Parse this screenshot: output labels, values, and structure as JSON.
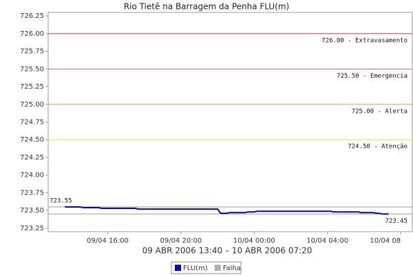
{
  "chart_data": {
    "type": "line",
    "title": "Rio Tietê na Barragem da Penha FLU(m)",
    "subtitle": "09 ABR 2006 13:40 – 10 ABR 2006 07:20",
    "x": [
      "2006-04-09T13:40",
      "2006-04-09T14:30",
      "2006-04-09T14:40",
      "2006-04-09T15:30",
      "2006-04-09T15:40",
      "2006-04-09T17:30",
      "2006-04-09T17:40",
      "2006-04-09T22:00",
      "2006-04-09T22:10",
      "2006-04-09T22:30",
      "2006-04-09T22:40",
      "2006-04-09T23:30",
      "2006-04-09T23:40",
      "2006-04-10T00:00",
      "2006-04-10T00:10",
      "2006-04-10T04:10",
      "2006-04-10T04:20",
      "2006-04-10T05:40",
      "2006-04-10T05:50",
      "2006-04-10T06:30",
      "2006-04-10T06:40",
      "2006-04-10T06:50",
      "2006-04-10T07:00",
      "2006-04-10T07:20"
    ],
    "series": [
      {
        "name": "FLU(m)",
        "color": "#0000cc",
        "values": [
          723.55,
          723.55,
          723.54,
          723.54,
          723.53,
          723.53,
          723.52,
          723.52,
          723.46,
          723.46,
          723.47,
          723.47,
          723.48,
          723.48,
          723.49,
          723.49,
          723.48,
          723.48,
          723.47,
          723.47,
          723.46,
          723.46,
          723.45,
          723.45
        ]
      },
      {
        "name": "Falha",
        "color": "#b0b0b0",
        "values": [
          null,
          null,
          null,
          null,
          null,
          null,
          null,
          null,
          null,
          null,
          null,
          null,
          null,
          null,
          null,
          null,
          null,
          null,
          null,
          null,
          null,
          null,
          null,
          null
        ]
      }
    ],
    "reference_lines": [
      {
        "value": 726.0,
        "label": "726.00 - Extravasamento",
        "color": "#cc3333"
      },
      {
        "value": 725.5,
        "label": "725.50 - Emergencia",
        "color": "#cc55cc"
      },
      {
        "value": 725.0,
        "label": "725.00 - Alerta",
        "color": "#ee9933"
      },
      {
        "value": 724.5,
        "label": "724.50 - Atenção",
        "color": "#eedd22"
      }
    ],
    "extremes": [
      {
        "value": 723.55,
        "label": "723.55",
        "side": "left"
      },
      {
        "value": 723.45,
        "label": "723.45",
        "side": "right"
      }
    ],
    "extreme_color": "#999999",
    "xlim": [
      "2006-04-09T12:45",
      "2006-04-10T08:38"
    ],
    "xticks": [
      {
        "value": "2006-04-09T16:00",
        "label": "09/04 16:00"
      },
      {
        "value": "2006-04-09T20:00",
        "label": "09/04 20:00"
      },
      {
        "value": "2006-04-10T00:00",
        "label": "10/04 00:00"
      },
      {
        "value": "2006-04-10T04:00",
        "label": "10/04 04:00"
      },
      {
        "value": "2006-04-10T08:00",
        "label": "10/04 08"
      }
    ],
    "ylim": [
      723.2,
      726.3
    ],
    "yticks": [
      {
        "value": 723.25,
        "label": "723.25"
      },
      {
        "value": 723.5,
        "label": "723.50"
      },
      {
        "value": 723.75,
        "label": "723.75"
      },
      {
        "value": 724.0,
        "label": "724.00"
      },
      {
        "value": 724.25,
        "label": "724.25"
      },
      {
        "value": 724.5,
        "label": "724.50"
      },
      {
        "value": 724.75,
        "label": "724.75"
      },
      {
        "value": 725.0,
        "label": "725.00"
      },
      {
        "value": 725.25,
        "label": "725.25"
      },
      {
        "value": 725.5,
        "label": "725.50"
      },
      {
        "value": 725.75,
        "label": "725.75"
      },
      {
        "value": 726.0,
        "label": "726.00"
      },
      {
        "value": 726.25,
        "label": "726.25"
      }
    ],
    "legend": "bottom"
  }
}
